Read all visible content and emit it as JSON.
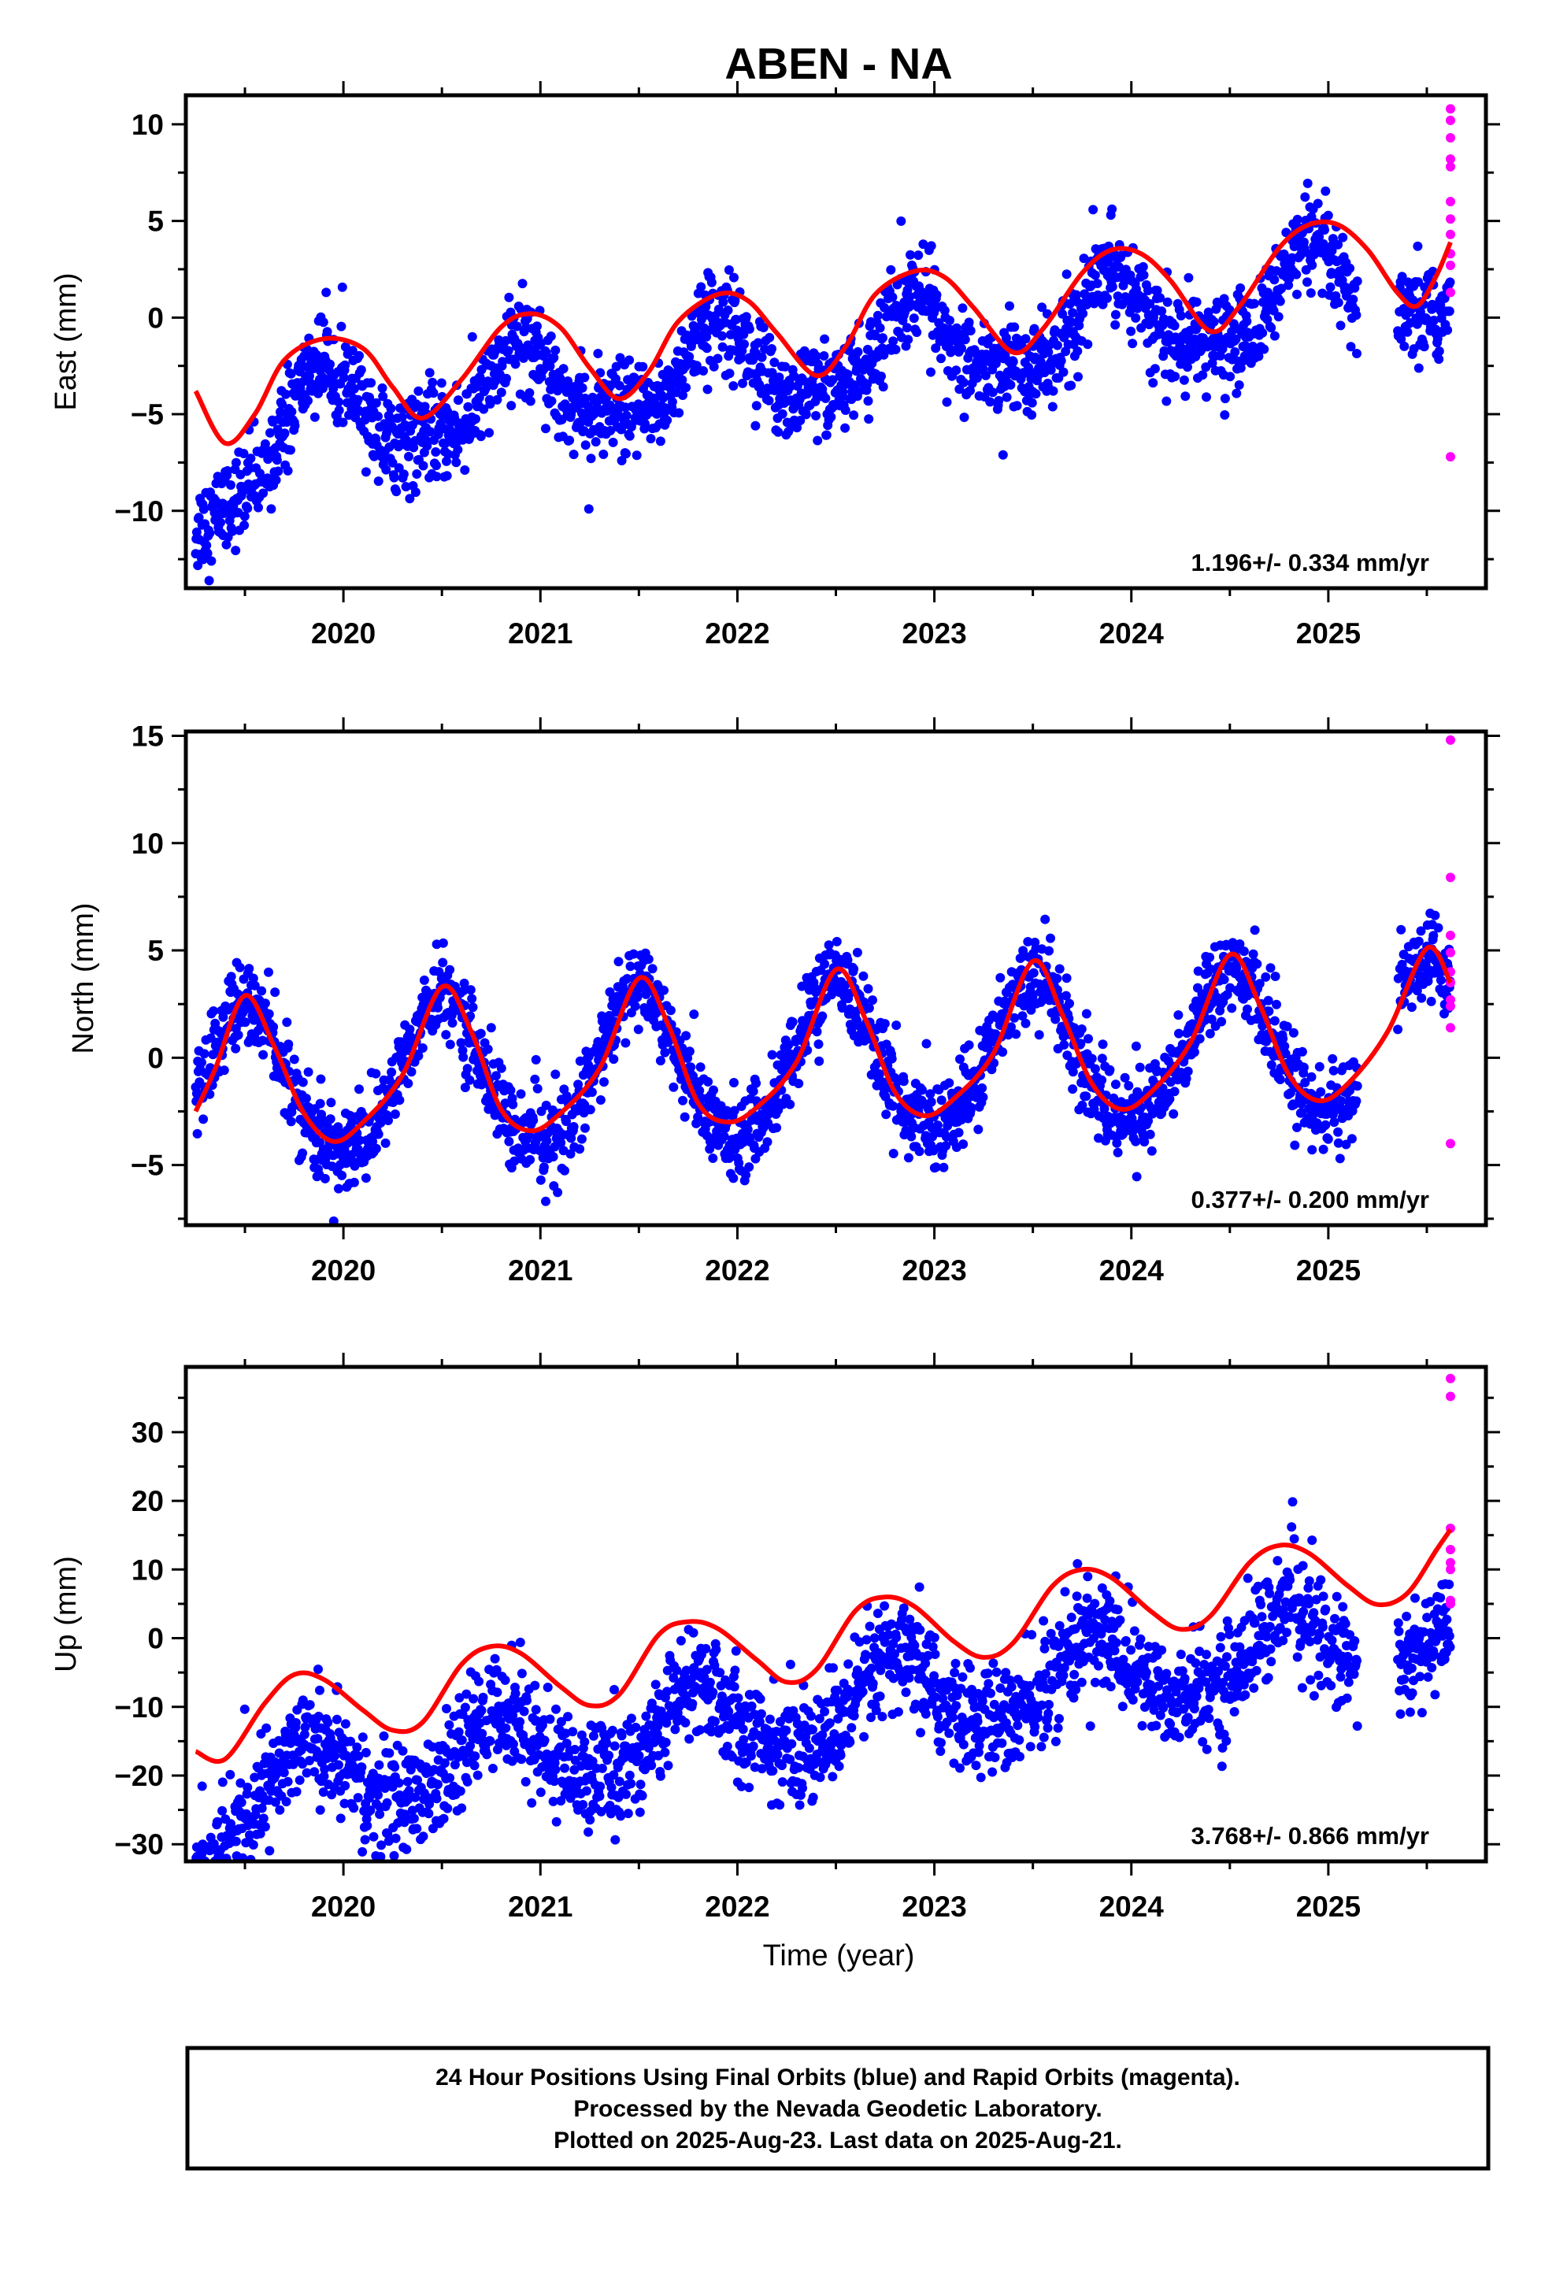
{
  "figure": {
    "title": "ABEN - NA",
    "xlabel": "Time (year)",
    "caption": [
      "24 Hour Positions Using Final Orbits (blue) and Rapid Orbits (magenta).",
      "Processed by the Nevada Geodetic Laboratory.",
      "Plotted on 2025-Aug-23. Last data on 2025-Aug-21."
    ]
  },
  "colors": {
    "final_orbits": "#0000ff",
    "rapid_orbits": "#ff00ff",
    "model_fit": "#ff0000",
    "frame": "#000000"
  },
  "chart_data": [
    {
      "type": "scatter",
      "ylabel": "East (mm)",
      "rate": "1.196+/- 0.334 mm/yr",
      "xlim": [
        2019.2,
        2025.8
      ],
      "ylim": [
        -14,
        11.5
      ],
      "xticks": [
        2020,
        2021,
        2022,
        2023,
        2024,
        2025
      ],
      "yticks": [
        -10,
        -5,
        0,
        5,
        10
      ],
      "series": [
        {
          "kind": "final",
          "start": 2019.25,
          "end": 2025.62,
          "gaps": [
            [
              2025.15,
              2025.35
            ]
          ],
          "trend": 1.196,
          "offset": -2.2,
          "annual_amp": 2.2,
          "annual_phase": 2019.9,
          "semi_amp": 0.7,
          "noise": 1.2,
          "start_boost": -3.5
        },
        {
          "kind": "rapid",
          "x": [
            2025.62,
            2025.62,
            2025.62,
            2025.62,
            2025.62,
            2025.62,
            2025.62,
            2025.62,
            2025.62,
            2025.62,
            2025.62,
            2025.62
          ],
          "y": [
            10.8,
            10.2,
            9.3,
            8.2,
            7.8,
            6.0,
            5.1,
            4.3,
            3.3,
            2.7,
            1.3,
            -7.2
          ]
        }
      ],
      "fit": {
        "x": [
          2019.25,
          2019.4,
          2019.55,
          2019.7,
          2019.9,
          2020.1,
          2020.25,
          2020.4,
          2020.6,
          2020.8,
          2020.95,
          2021.1,
          2021.25,
          2021.4,
          2021.55,
          2021.7,
          2021.9,
          2022.05,
          2022.2,
          2022.4,
          2022.55,
          2022.7,
          2022.9,
          2023.05,
          2023.2,
          2023.4,
          2023.55,
          2023.75,
          2023.9,
          2024.05,
          2024.2,
          2024.4,
          2024.55,
          2024.75,
          2024.9,
          2025.05,
          2025.2,
          2025.35,
          2025.45,
          2025.55,
          2025.62
        ],
        "y": [
          -3.8,
          -6.5,
          -5.0,
          -2.2,
          -1.1,
          -1.6,
          -3.6,
          -5.2,
          -3.2,
          -0.5,
          0.2,
          -0.5,
          -2.6,
          -4.2,
          -2.8,
          -0.2,
          1.2,
          0.9,
          -0.8,
          -3.0,
          -1.5,
          1.2,
          2.4,
          2.1,
          0.5,
          -1.8,
          -0.6,
          2.3,
          3.5,
          3.3,
          1.9,
          -0.7,
          0.6,
          3.6,
          4.8,
          4.8,
          3.5,
          1.3,
          0.6,
          2.2,
          3.9
        ]
      }
    },
    {
      "type": "scatter",
      "ylabel": "North (mm)",
      "rate": "0.377+/- 0.200 mm/yr",
      "xlim": [
        2019.2,
        2025.8
      ],
      "ylim": [
        -7.8,
        15.2
      ],
      "xticks": [
        2020,
        2021,
        2022,
        2023,
        2024,
        2025
      ],
      "yticks": [
        -5,
        0,
        5,
        10,
        15
      ],
      "series": [
        {
          "kind": "final",
          "start": 2019.25,
          "end": 2025.62,
          "gaps": [
            [
              2025.15,
              2025.35
            ]
          ],
          "trend": 0.377,
          "offset": -0.3,
          "annual_amp": 3.5,
          "annual_phase": 2019.5,
          "semi_amp": 0.4,
          "noise": 1.0,
          "start_boost": 0
        },
        {
          "kind": "rapid",
          "x": [
            2025.62,
            2025.62,
            2025.62,
            2025.62,
            2025.62,
            2025.62,
            2025.62,
            2025.62,
            2025.62,
            2025.62
          ],
          "y": [
            14.8,
            8.4,
            5.7,
            4.9,
            4.0,
            3.5,
            2.7,
            2.4,
            1.4,
            -4.0
          ]
        }
      ],
      "fit": {
        "x": [
          2019.25,
          2019.35,
          2019.5,
          2019.65,
          2019.8,
          2019.95,
          2020.1,
          2020.3,
          2020.5,
          2020.65,
          2020.8,
          2020.95,
          2021.1,
          2021.3,
          2021.5,
          2021.65,
          2021.8,
          2021.95,
          2022.1,
          2022.3,
          2022.5,
          2022.65,
          2022.8,
          2022.95,
          2023.1,
          2023.3,
          2023.5,
          2023.65,
          2023.8,
          2023.95,
          2024.1,
          2024.3,
          2024.5,
          2024.65,
          2024.8,
          2024.95,
          2025.1,
          2025.3,
          2025.5,
          2025.62
        ],
        "y": [
          -2.5,
          -0.5,
          2.9,
          0.5,
          -2.6,
          -3.9,
          -3.0,
          -0.8,
          3.3,
          1.2,
          -2.4,
          -3.4,
          -2.6,
          -0.5,
          3.7,
          1.5,
          -2.1,
          -3.0,
          -2.3,
          -0.2,
          4.1,
          1.8,
          -1.6,
          -2.7,
          -1.9,
          0.2,
          4.5,
          2.0,
          -1.2,
          -2.4,
          -1.6,
          0.7,
          4.8,
          2.5,
          -0.8,
          -2.0,
          -1.2,
          1.2,
          5.1,
          3.5
        ]
      }
    },
    {
      "type": "scatter",
      "ylabel": "Up (mm)",
      "rate": "3.768+/- 0.866 mm/yr",
      "xlim": [
        2019.2,
        2025.8
      ],
      "ylim": [
        -32.5,
        39.5
      ],
      "xticks": [
        2020,
        2021,
        2022,
        2023,
        2024,
        2025
      ],
      "yticks": [
        -30,
        -20,
        -10,
        0,
        10,
        20,
        30
      ],
      "series": [
        {
          "kind": "final",
          "start": 2019.25,
          "end": 2025.62,
          "gaps": [
            [
              2025.15,
              2025.35
            ]
          ],
          "trend": 3.768,
          "offset": -11.0,
          "annual_amp": 5.5,
          "annual_phase": 2019.8,
          "semi_amp": 1.0,
          "noise": 4.0,
          "start_boost": -6.0
        },
        {
          "kind": "rapid",
          "x": [
            2025.62,
            2025.62,
            2025.62,
            2025.62,
            2025.62,
            2025.62,
            2025.62,
            2025.62
          ],
          "y": [
            37.8,
            35.2,
            16.0,
            12.9,
            11.0,
            10.0,
            5.5,
            5.0
          ]
        }
      ],
      "fit": {
        "x": [
          2019.25,
          2019.4,
          2019.6,
          2019.75,
          2019.9,
          2020.1,
          2020.25,
          2020.4,
          2020.6,
          2020.75,
          2020.9,
          2021.1,
          2021.25,
          2021.4,
          2021.6,
          2021.75,
          2021.9,
          2022.1,
          2022.25,
          2022.4,
          2022.6,
          2022.75,
          2022.9,
          2023.1,
          2023.25,
          2023.4,
          2023.6,
          2023.75,
          2023.9,
          2024.1,
          2024.25,
          2024.4,
          2024.6,
          2024.75,
          2024.9,
          2025.1,
          2025.25,
          2025.4,
          2025.55,
          2025.62
        ],
        "y": [
          -16.5,
          -17.6,
          -9.5,
          -5.3,
          -6.0,
          -10.5,
          -13.4,
          -12.3,
          -3.8,
          -1.2,
          -2.2,
          -7.0,
          -9.8,
          -8.2,
          0.5,
          2.4,
          1.4,
          -3.2,
          -6.4,
          -4.6,
          4.0,
          6.0,
          4.6,
          -0.5,
          -2.8,
          -0.7,
          7.6,
          10.0,
          8.8,
          3.9,
          1.3,
          3.2,
          11.0,
          13.5,
          12.4,
          7.6,
          4.9,
          6.5,
          12.9,
          15.8
        ]
      }
    }
  ]
}
